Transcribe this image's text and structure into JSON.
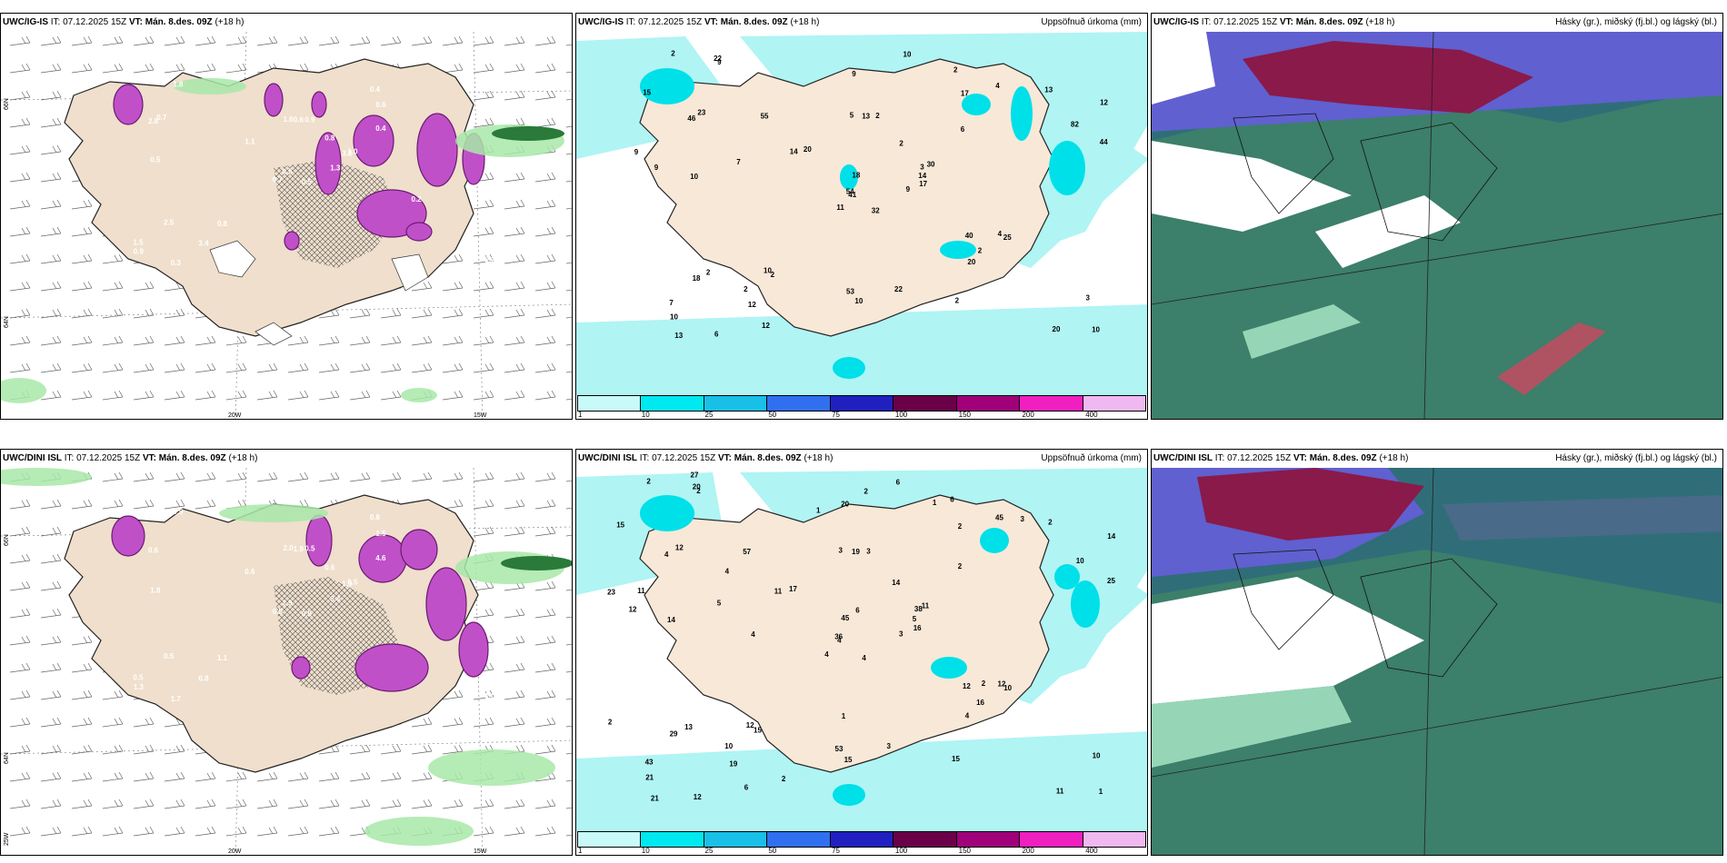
{
  "panels": {
    "ig_wind": {
      "model": "UWC/IG-IS",
      "it": "IT: 07.12.2025 15Z",
      "vt": "VT: Mán. 8.des. 09Z",
      "step": "(+18 h)",
      "title": ""
    },
    "ig_prec": {
      "model": "UWC/IG-IS",
      "it": "IT: 07.12.2025 15Z",
      "vt": "VT: Mán. 8.des. 09Z",
      "step": "(+18 h)",
      "title": "Uppsöfnuð úrkoma (mm)"
    },
    "ig_cloud": {
      "model": "UWC/IG-IS",
      "it": "IT: 07.12.2025 15Z",
      "vt": "VT: Mán. 8.des. 09Z",
      "step": "(+18 h)",
      "title": "Hásky (gr.), miðský (fj.bl.) og lágský (bl.)"
    },
    "dini_wind": {
      "model": "UWC/DINI ISL",
      "it": "IT: 07.12.2025 15Z",
      "vt": "VT: Mán. 8.des. 09Z",
      "step": "(+18 h)",
      "title": ""
    },
    "dini_prec": {
      "model": "UWC/DINI ISL",
      "it": "IT: 07.12.2025 15Z",
      "vt": "VT: Mán. 8.des. 09Z",
      "step": "(+18 h)",
      "title": "Uppsöfnuð úrkoma (mm)"
    },
    "dini_cloud": {
      "model": "UWC/DINI ISL",
      "it": "IT: 07.12.2025 15Z",
      "vt": "VT: Mán. 8.des. 09Z",
      "step": "(+18 h)",
      "title": "Hásky (gr.), miðský (fj.bl.) og lágský (bl.)"
    }
  },
  "axis_labels": {
    "lon_20": "20W",
    "lon_15": "15W",
    "lat_66": "66N",
    "lat_64": "64N",
    "lon_25": "25W"
  },
  "legend": {
    "levels": [
      "1",
      "10",
      "25",
      "50",
      "75",
      "100",
      "150",
      "200",
      "400"
    ],
    "colors": [
      "#c8fafa",
      "#00e8f0",
      "#18c0e8",
      "#3070f0",
      "#2020c0",
      "#6a0048",
      "#a0007a",
      "#f020c0",
      "#f0b8f0"
    ]
  },
  "ig_prec_values": [
    "32",
    "46",
    "41",
    "7",
    "3",
    "2",
    "2",
    "2",
    "17",
    "9",
    "9",
    "10",
    "10",
    "12",
    "11",
    "6",
    "6",
    "5",
    "2",
    "2",
    "20",
    "10",
    "12",
    "13",
    "30",
    "25",
    "23",
    "9",
    "9",
    "40",
    "44",
    "54",
    "53",
    "18",
    "55",
    "4",
    "10",
    "20",
    "3",
    "4",
    "10",
    "14",
    "7",
    "20",
    "12",
    "9",
    "14",
    "13",
    "10",
    "17",
    "18",
    "82",
    "15",
    "2",
    "2",
    "2",
    "22",
    "2",
    "22",
    "13"
  ],
  "dini_prec_values": [
    "4",
    "4",
    "4",
    "43",
    "38",
    "15",
    "6",
    "3",
    "2",
    "3",
    "2",
    "1",
    "14",
    "14",
    "4",
    "2",
    "12",
    "3",
    "14",
    "13",
    "17",
    "21",
    "19",
    "19",
    "11",
    "10",
    "12",
    "20",
    "12",
    "12",
    "25",
    "36",
    "53",
    "45",
    "57",
    "45",
    "12",
    "11",
    "10",
    "12",
    "6",
    "11",
    "5",
    "4",
    "6",
    "23",
    "5",
    "21",
    "15",
    "16",
    "29",
    "10",
    "15",
    "16",
    "15",
    "10",
    "20",
    "2",
    "3",
    "2",
    "2",
    "4",
    "11",
    "4",
    "3",
    "27",
    "1",
    "1",
    "6",
    "2",
    "1",
    "2",
    "2"
  ],
  "ig_wind_values": [
    "0.5",
    "2.8",
    "0.5",
    "1.5",
    "3.2",
    "0.8",
    "0.4",
    "0.9",
    "0.6",
    "1.3",
    "1.8",
    "2.2",
    "0.5",
    "1.2",
    "0.7",
    "0.4",
    "0.3",
    "1.6",
    "0.8",
    "2.5",
    "1.1",
    "0.9",
    "3.4",
    "0.6",
    "1.0",
    "0.2",
    "0.7"
  ],
  "dini_wind_values": [
    "0.5",
    "0.6",
    "2.9",
    "0.5",
    "1.9",
    "1.1",
    "0.8",
    "0.5",
    "1.5",
    "3.4",
    "0.9",
    "1.0",
    "1.8",
    "1.4",
    "0.5",
    "4.6",
    "1.7",
    "2.0",
    "0.6",
    "0.5",
    "0.6",
    "1.3",
    "0.8",
    "1.9",
    "0.5"
  ]
}
